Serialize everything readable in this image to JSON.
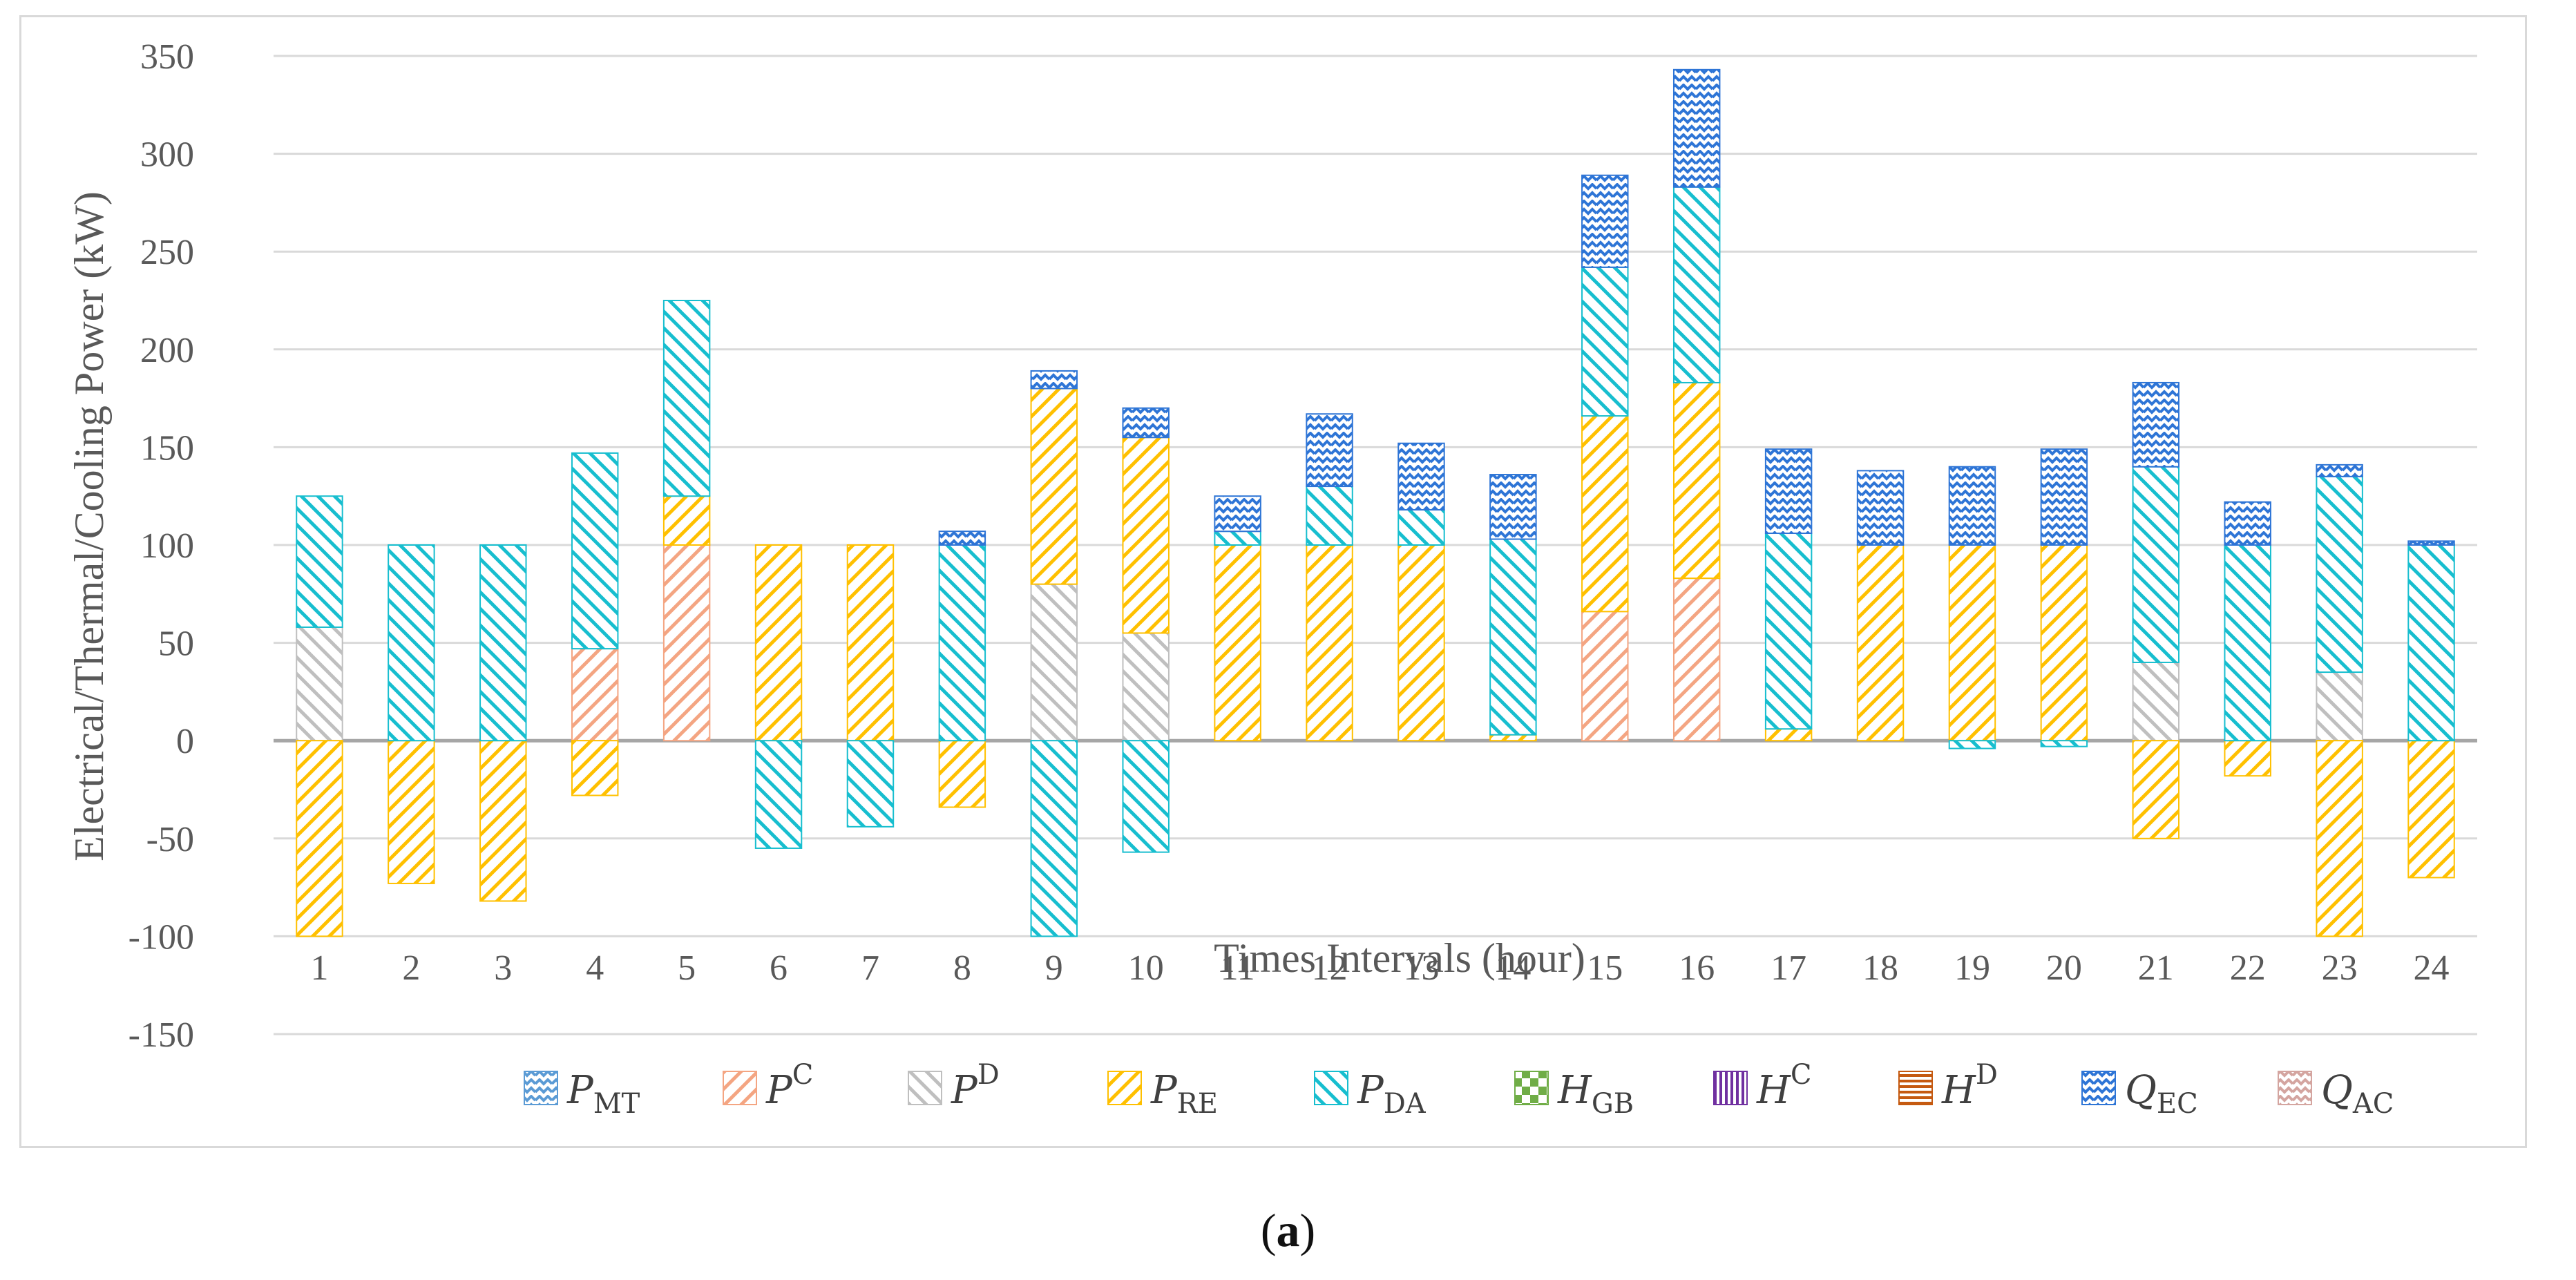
{
  "caption": {
    "open": "(",
    "letter": "a",
    "close": ")"
  },
  "chart_data": {
    "type": "stacked-bar",
    "xlabel": "Times Intervals (hour)",
    "ylabel": "Electrical/Thermal/Cooling  Power (kW)",
    "ylim": [
      -150,
      350
    ],
    "yticks": [
      350,
      300,
      250,
      200,
      150,
      100,
      50,
      0,
      -50,
      -100,
      -150
    ],
    "grid": true,
    "legend_position": "bottom",
    "categories": [
      "1",
      "2",
      "3",
      "4",
      "5",
      "6",
      "7",
      "8",
      "9",
      "10",
      "11",
      "12",
      "13",
      "14",
      "15",
      "16",
      "17",
      "18",
      "19",
      "20",
      "21",
      "22",
      "23",
      "24"
    ],
    "series": [
      {
        "key": "P_MT",
        "name": "P",
        "sub": "MT",
        "sup": "",
        "color": "#5b9bd5",
        "pattern": "wave",
        "values": [
          0,
          0,
          0,
          0,
          0,
          0,
          0,
          0,
          0,
          0,
          0,
          0,
          0,
          0,
          0,
          0,
          0,
          0,
          0,
          0,
          0,
          0,
          0,
          0
        ]
      },
      {
        "key": "P_C",
        "name": "P",
        "sub": "",
        "sup": "C",
        "color": "#f4a582",
        "pattern": "diag-up",
        "values": [
          0,
          0,
          0,
          47,
          100,
          0,
          0,
          0,
          0,
          0,
          0,
          0,
          0,
          0,
          66,
          83,
          0,
          0,
          0,
          0,
          0,
          0,
          0,
          0
        ]
      },
      {
        "key": "P_D",
        "name": "P",
        "sub": "",
        "sup": "D",
        "color": "#bfbfbf",
        "pattern": "diag-down",
        "values": [
          58,
          0,
          0,
          0,
          0,
          0,
          0,
          0,
          80,
          55,
          0,
          0,
          0,
          0,
          0,
          0,
          0,
          0,
          0,
          0,
          40,
          0,
          35,
          0
        ]
      },
      {
        "key": "P_RE",
        "name": "P",
        "sub": "RE",
        "sup": "",
        "color": "#ffc000",
        "pattern": "diag-up",
        "values": [
          -100,
          -73,
          -82,
          -28,
          25,
          100,
          100,
          -34,
          100,
          100,
          100,
          100,
          100,
          3,
          100,
          100,
          6,
          100,
          100,
          100,
          -50,
          -18,
          -100,
          -70
        ]
      },
      {
        "key": "P_DA",
        "name": "P",
        "sub": "DA",
        "sup": "",
        "color": "#17becf",
        "pattern": "diag-down",
        "values": [
          67,
          100,
          100,
          100,
          100,
          -55,
          -44,
          100,
          -100,
          -57,
          7,
          30,
          18,
          100,
          76,
          100,
          100,
          0,
          -4,
          -3,
          100,
          100,
          100,
          100
        ]
      },
      {
        "key": "H_GB",
        "name": "H",
        "sub": "GB",
        "sup": "",
        "color": "#70ad47",
        "pattern": "check",
        "values": [
          0,
          0,
          0,
          0,
          0,
          0,
          0,
          0,
          0,
          0,
          0,
          0,
          0,
          0,
          0,
          0,
          0,
          0,
          0,
          0,
          0,
          0,
          0,
          0
        ]
      },
      {
        "key": "H_C",
        "name": "H",
        "sub": "",
        "sup": "C",
        "color": "#7030a0",
        "pattern": "vert",
        "values": [
          0,
          0,
          0,
          0,
          0,
          0,
          0,
          0,
          0,
          0,
          0,
          0,
          0,
          0,
          0,
          0,
          0,
          0,
          0,
          0,
          0,
          0,
          0,
          0
        ]
      },
      {
        "key": "H_D",
        "name": "H",
        "sub": "",
        "sup": "D",
        "color": "#c55a11",
        "pattern": "horiz",
        "values": [
          0,
          0,
          0,
          0,
          0,
          0,
          0,
          0,
          0,
          0,
          0,
          0,
          0,
          0,
          0,
          0,
          0,
          0,
          0,
          0,
          0,
          0,
          0,
          0
        ]
      },
      {
        "key": "Q_EC",
        "name": "Q",
        "sub": "EC",
        "sup": "",
        "color": "#2e75d6",
        "pattern": "wave",
        "values": [
          0,
          0,
          0,
          0,
          0,
          0,
          0,
          7,
          9,
          15,
          18,
          37,
          34,
          33,
          47,
          60,
          43,
          38,
          40,
          49,
          43,
          22,
          6,
          2
        ]
      },
      {
        "key": "Q_AC",
        "name": "Q",
        "sub": "AC",
        "sup": "",
        "color": "#d4a5a0",
        "pattern": "wave",
        "values": [
          0,
          0,
          0,
          0,
          0,
          0,
          0,
          0,
          0,
          0,
          0,
          0,
          0,
          0,
          0,
          0,
          0,
          0,
          0,
          0,
          0,
          0,
          0,
          0
        ]
      }
    ]
  }
}
